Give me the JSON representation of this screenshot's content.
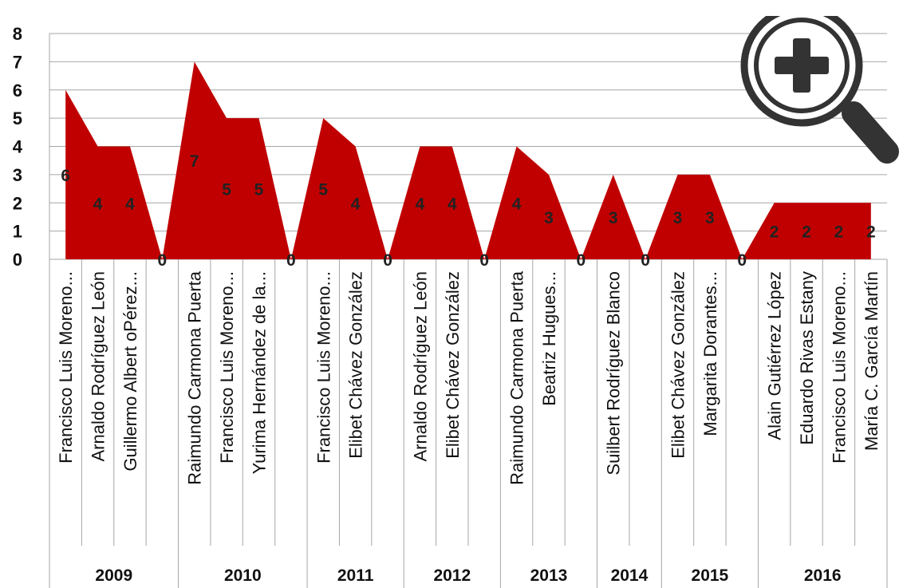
{
  "chart_data": {
    "type": "area",
    "categories": [
      "Francisco Luis Moreno...",
      "Arnaldo Rodríguez León",
      "Guillermo Albert oPérez...",
      "",
      "Raimundo Carmona Puerta",
      "Francisco Luis Moreno...",
      "Yurima Hernández de la...",
      "",
      "Francisco Luis Moreno...",
      "Elibet Chávez González",
      "",
      "Arnaldo Rodríguez León",
      "Elibet Chávez González",
      "",
      "Raimundo Carmona Puerta",
      "Beatriz Hugues...",
      "",
      "Suilbert Rodríguez Blanco",
      "",
      "Elibet Chávez González",
      "Margarita Dorantes...",
      "",
      "Alain Gutiérrez López",
      "Eduardo Rivas Estany",
      "Francisco Luis Moreno...",
      "María C. García Martín"
    ],
    "groups": [
      {
        "year": "2009",
        "count": 4
      },
      {
        "year": "2010",
        "count": 4
      },
      {
        "year": "2011",
        "count": 3
      },
      {
        "year": "2012",
        "count": 3
      },
      {
        "year": "2013",
        "count": 3
      },
      {
        "year": "2014",
        "count": 2
      },
      {
        "year": "2015",
        "count": 3
      },
      {
        "year": "2016",
        "count": 4
      }
    ],
    "values": [
      6,
      4,
      4,
      0,
      7,
      5,
      5,
      0,
      5,
      4,
      0,
      4,
      4,
      0,
      4,
      3,
      0,
      3,
      0,
      3,
      3,
      0,
      2,
      2,
      2,
      2
    ],
    "ylim": [
      0,
      8
    ],
    "yticks": [
      "0",
      "1",
      "2",
      "3",
      "4",
      "5",
      "6",
      "7",
      "8"
    ],
    "grid": true,
    "color": "#c00000"
  },
  "zoom_icon": "magnifier-plus-icon"
}
